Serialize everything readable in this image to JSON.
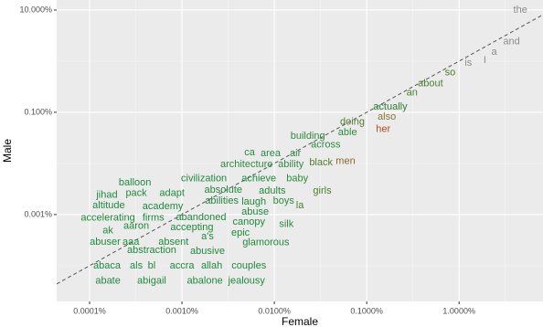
{
  "chart_data": {
    "type": "scatter",
    "x_label": "Female",
    "y_label": "Male",
    "xscale": "log",
    "yscale": "log",
    "grid": true,
    "xlim": [
      4.4e-05,
      8.1
    ],
    "ylim": [
      2e-05,
      15.7
    ],
    "xticks": [
      {
        "value": 0.0001,
        "label": "0.0001%"
      },
      {
        "value": 0.001,
        "label": "0.0010%"
      },
      {
        "value": 0.01,
        "label": "0.0100%"
      },
      {
        "value": 0.1,
        "label": "0.1000%"
      },
      {
        "value": 1,
        "label": "1.0000%"
      }
    ],
    "yticks": [
      {
        "value": 10,
        "label": "10.000%"
      },
      {
        "value": 0.1,
        "label": "0.100%"
      },
      {
        "value": 0.001,
        "label": "0.001%"
      }
    ],
    "point_labels": [
      "the",
      "and",
      "a",
      "I",
      "is",
      "so",
      "about",
      "an",
      "actually",
      "also",
      "her",
      "doing",
      "able",
      "building",
      "across",
      "area",
      "air",
      "ca",
      "black",
      "men",
      "architecture",
      "ability",
      "civilization",
      "achieve",
      "baby",
      "balloon",
      "absolute",
      "adults",
      "girls",
      "jihad",
      "pack",
      "adapt",
      "abilities",
      "laugh",
      "boys",
      "la",
      "altitude",
      "academy",
      "abuse",
      "accelerating",
      "firms",
      "abandoned",
      "canopy",
      "silk",
      "aaron",
      "accepting",
      "ak",
      "epic",
      "a's",
      "abuser",
      "aaa",
      "absent",
      "glamorous",
      "abstraction",
      "abusive",
      "abaca",
      "als",
      "bl",
      "accra",
      "allah",
      "couples",
      "abate",
      "abigail",
      "abalone",
      "jealousy"
    ],
    "x": [
      4.6,
      3.7,
      2.4,
      1.9,
      1.26,
      0.8,
      0.49,
      0.31,
      0.18,
      0.165,
      0.151,
      0.07,
      0.062,
      0.023,
      0.036,
      0.0091,
      0.0169,
      0.0054,
      0.032,
      0.059,
      0.005,
      0.0151,
      0.00173,
      0.0068,
      0.0177,
      0.00031,
      0.0028,
      0.0095,
      0.033,
      0.000154,
      0.00032,
      0.00078,
      0.0027,
      0.006,
      0.0126,
      0.0189,
      0.000161,
      0.00062,
      0.0062,
      0.000158,
      0.00049,
      0.00161,
      0.0053,
      0.0135,
      0.00032,
      0.00128,
      0.000158,
      0.0043,
      0.00189,
      0.000147,
      0.00028,
      0.00081,
      0.0081,
      0.00047,
      0.00189,
      0.000154,
      0.00032,
      0.00047,
      0.001,
      0.0021,
      0.0053,
      0.000158,
      0.00047,
      0.00177,
      0.005
    ],
    "values": [
      10,
      2.4,
      1.5,
      1.04,
      0.92,
      0.59,
      0.36,
      0.24,
      0.128,
      0.081,
      0.046,
      0.064,
      0.04,
      0.034,
      0.023,
      0.0157,
      0.0157,
      0.0164,
      0.0104,
      0.0109,
      0.0096,
      0.0096,
      0.005,
      0.005,
      0.005,
      0.0042,
      0.003,
      0.0029,
      0.0029,
      0.0024,
      0.0026,
      0.0026,
      0.00185,
      0.00178,
      0.00185,
      0.00151,
      0.00151,
      0.00145,
      0.00113,
      0.00085,
      0.00085,
      0.00088,
      0.00072,
      0.00064,
      0.00059,
      0.00056,
      0.00048,
      0.00044,
      0.00037,
      0.00029,
      0.00029,
      0.00029,
      0.00028,
      0.000201,
      0.000193,
      0.0001,
      0.0001,
      0.0001,
      0.0001,
      0.0001,
      0.0001,
      5e-05,
      5e-05,
      5e-05,
      5e-05
    ],
    "colors": [
      "#8c8c8c",
      "#8c8c8c",
      "#8c8c8c",
      "#8c8c8c",
      "#8c8c8c",
      "#4f7f2a",
      "#4f7f2a",
      "#4f7f2a",
      "#2e7d32",
      "#8a7a2a",
      "#b54a1c",
      "#4f7f2a",
      "#2e8b3e",
      "#2e8b3e",
      "#2e8b3e",
      "#2e8b3e",
      "#2e8b3e",
      "#2e8b3e",
      "#4f7f2a",
      "#8a6a2a",
      "#2e8b3e",
      "#2e8b3e",
      "#1f8a3c",
      "#1f8a3c",
      "#2e8b3e",
      "#1f8a3c",
      "#1f8a3c",
      "#1f8a3c",
      "#4f7f2a",
      "#1f8a3c",
      "#1f8a3c",
      "#1f8a3c",
      "#1f8a3c",
      "#1f8a3c",
      "#2e8b3e",
      "#4f7f2a",
      "#1f8a3c",
      "#1f8a3c",
      "#1f8a3c",
      "#1f8a3c",
      "#1f8a3c",
      "#1f8a3c",
      "#1f8a3c",
      "#2e8b3e",
      "#1f8a3c",
      "#1f8a3c",
      "#1f8a3c",
      "#1f8a3c",
      "#1f8a3c",
      "#1f8a3c",
      "#1f8a3c",
      "#1f8a3c",
      "#1f8a3c",
      "#1f8a3c",
      "#1f8a3c",
      "#1f8a3c",
      "#1f8a3c",
      "#1f8a3c",
      "#1f8a3c",
      "#1f8a3c",
      "#1f8a3c",
      "#1f8a3c",
      "#1f8a3c",
      "#1f8a3c",
      "#1f8a3c"
    ]
  }
}
